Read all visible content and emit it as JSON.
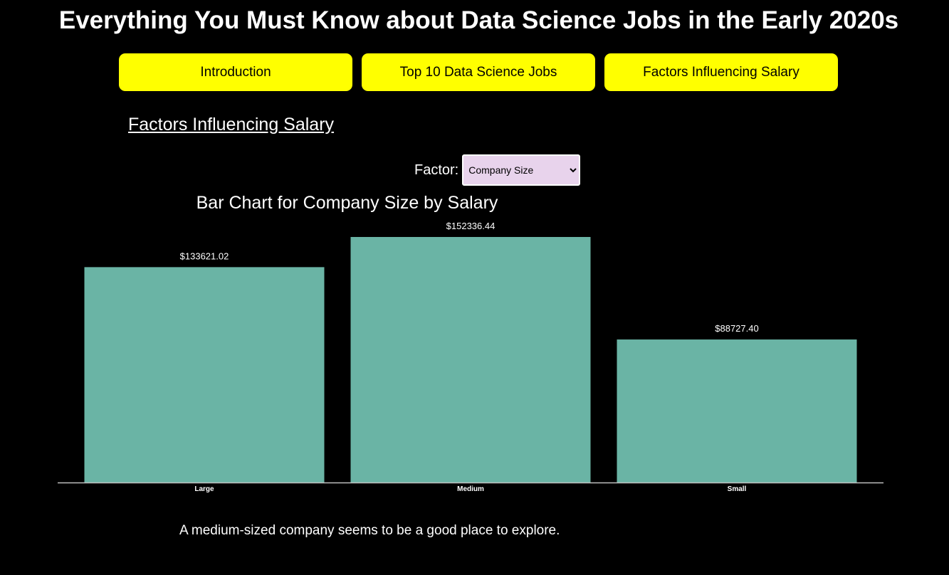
{
  "header": {
    "title": "Everything You Must Know about Data Science Jobs in the Early 2020s"
  },
  "nav": {
    "items": [
      {
        "label": "Introduction"
      },
      {
        "label": "Top 10 Data Science Jobs"
      },
      {
        "label": "Factors Influencing Salary"
      }
    ]
  },
  "section": {
    "title": "Factors Influencing Salary"
  },
  "factor": {
    "label": "Factor:",
    "selected": "Company Size"
  },
  "chart_title": "Bar Chart for Company Size by Salary",
  "chart_data": {
    "type": "bar",
    "title": "Bar Chart for Company Size by Salary",
    "categories": [
      "Large",
      "Medium",
      "Small"
    ],
    "values": [
      133621.02,
      152336.44,
      88727.4
    ],
    "value_labels": [
      "$133621.02",
      "$152336.44",
      "$88727.40"
    ],
    "xlabel": "",
    "ylabel": "",
    "ylim": [
      0,
      152336.44
    ],
    "grid": false,
    "bar_color": "#6ab4a5"
  },
  "caption": "A medium-sized company seems to be a good place to explore.",
  "colors": {
    "background": "#000000",
    "nav_button": "#ffff00",
    "select_bg": "#e8d3ec"
  }
}
